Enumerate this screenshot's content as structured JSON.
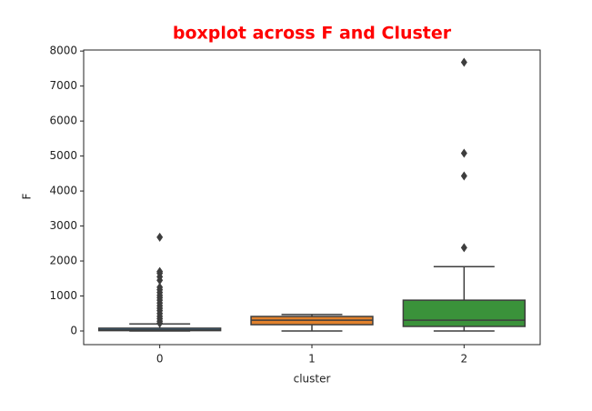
{
  "chart_data": {
    "type": "box",
    "title": "boxplot across F and Cluster",
    "x_label": "cluster",
    "y_label": "F",
    "categories": [
      "0",
      "1",
      "2"
    ],
    "boxes": [
      {
        "color": "#3274a1",
        "whisker_low": 0,
        "q1": 10,
        "median": 30,
        "q3": 80,
        "whisker_high": 200,
        "outliers": [
          220,
          280,
          350,
          420,
          500,
          580,
          650,
          720,
          800,
          880,
          950,
          1020,
          1100,
          1180,
          1250,
          1450,
          1550,
          1650,
          1700,
          2680
        ]
      },
      {
        "color": "#e1812c",
        "whisker_low": 0,
        "q1": 180,
        "median": 310,
        "q3": 415,
        "whisker_high": 470,
        "outliers": []
      },
      {
        "color": "#3a923a",
        "whisker_low": 0,
        "q1": 130,
        "median": 310,
        "q3": 880,
        "whisker_high": 1840,
        "outliers": [
          2380,
          4430,
          5080,
          7680
        ]
      }
    ],
    "ylim": [
      -390,
      8030
    ],
    "yticks": [
      0,
      1000,
      2000,
      3000,
      4000,
      5000,
      6000,
      7000,
      8000
    ]
  }
}
